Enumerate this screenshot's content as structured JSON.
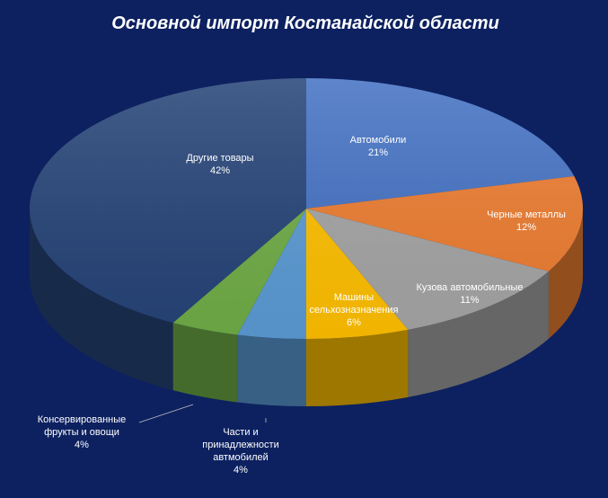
{
  "chart_data": {
    "type": "pie",
    "title": "Основной импорт Костанайской области",
    "style": "3d",
    "colors": {
      "background": "#0d2160"
    },
    "slices": [
      {
        "label_lines": [
          "Автомобили"
        ],
        "value": 21,
        "value_label": "21%",
        "color": "#4472c4"
      },
      {
        "label_lines": [
          "Черные металлы"
        ],
        "value": 12,
        "value_label": "12%",
        "color": "#ed7d31"
      },
      {
        "label_lines": [
          "Кузова автомобильные"
        ],
        "value": 11,
        "value_label": "11%",
        "color": "#a5a5a5"
      },
      {
        "label_lines": [
          "Машины",
          "сельхозназначения"
        ],
        "value": 6,
        "value_label": "6%",
        "color": "#ffc000"
      },
      {
        "label_lines": [
          "Части и",
          "принадлежности",
          "автмобилей"
        ],
        "value": 4,
        "value_label": "4%",
        "color": "#5b9bd5"
      },
      {
        "label_lines": [
          "Консервированные",
          "фрукты и овощи"
        ],
        "value": 4,
        "value_label": "4%",
        "color": "#70ad47"
      },
      {
        "label_lines": [
          "Другие товары"
        ],
        "value": 42,
        "value_label": "42%",
        "color": "#264478"
      }
    ]
  }
}
